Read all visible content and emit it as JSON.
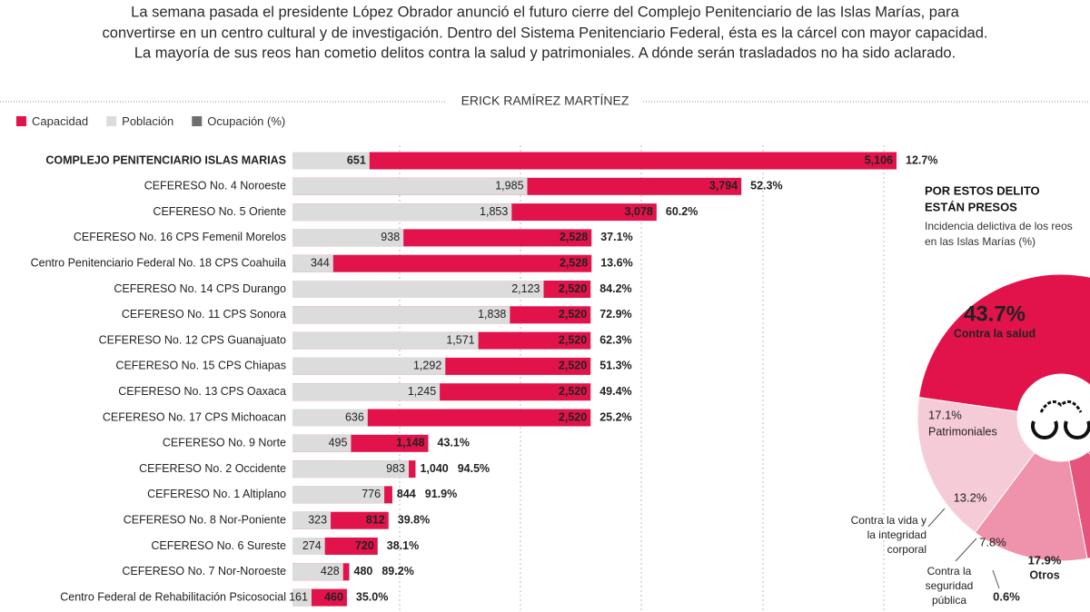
{
  "intro": [
    "La semana pasada el presidente López Obrador anunció el futuro cierre del Complejo Penitenciario de las Islas Marías, para",
    "convertirse en un centro cultural y de investigación. Dentro del Sistema Penitenciario Federal, ésta es la cárcel con mayor capacidad.",
    "La mayoría de sus reos han cometio delitos contra la salud y patrimoniales. A dónde serán trasladados no ha sido aclarado."
  ],
  "byline": "ERICK RAMÍREZ MARTÍNEZ",
  "chart_data": [
    {
      "type": "bar",
      "categories": [
        "COMPLEJO PENITENCIARIO ISLAS MARIAS",
        "CEFERESO No. 4 Noroeste",
        "CEFERESO No. 5 Oriente",
        "CEFERESO No. 16 CPS Femenil Morelos",
        "Centro Penitenciario Federal No. 18 CPS Coahuila",
        "CEFERESO No. 14 CPS Durango",
        "CEFERESO No. 11 CPS Sonora",
        "CEFERESO No. 12 CPS Guanajuato",
        "CEFERESO No. 15 CPS Chiapas",
        "CEFERESO No. 13 CPS Oaxaca",
        "CEFERESO No. 17 CPS Michoacan",
        "CEFERESO No. 9 Norte",
        "CEFERESO No. 2 Occidente",
        "CEFERESO No. 1 Altiplano",
        "CEFERESO No. 8 Nor-Poniente",
        "CEFERESO No. 6 Sureste",
        "CEFERESO No. 7 Nor-Noroeste",
        "Centro Federal de Rehabilitación Psicosocial"
      ],
      "series": [
        {
          "name": "Capacidad",
          "color": "#e1134a",
          "values": [
            5106,
            3794,
            3078,
            2528,
            2528,
            2520,
            2520,
            2520,
            2520,
            2520,
            2520,
            1148,
            1040,
            844,
            812,
            720,
            480,
            460
          ],
          "value_labels": [
            "5,106",
            "3,794",
            "3,078",
            "2,528",
            "2,528",
            "2,520",
            "2,520",
            "2,520",
            "2,520",
            "2,520",
            "2,520",
            "1,148",
            "1,040",
            "844",
            "812",
            "720",
            "480",
            "460"
          ]
        },
        {
          "name": "Población",
          "color": "#dcdcdc",
          "values": [
            651,
            1985,
            1853,
            938,
            344,
            2123,
            1838,
            1571,
            1292,
            1245,
            636,
            495,
            983,
            776,
            323,
            274,
            428,
            161
          ],
          "value_labels": [
            "651",
            "1,985",
            "1,853",
            "938",
            "344",
            "2,123",
            "1,838",
            "1,571",
            "1,292",
            "1,245",
            "636",
            "495",
            "983",
            "776",
            "323",
            "274",
            "428",
            "161"
          ]
        },
        {
          "name": "Ocupación (%)",
          "color": "#6d6e70",
          "values": [
            12.7,
            52.3,
            60.2,
            37.1,
            13.6,
            84.2,
            72.9,
            62.3,
            51.3,
            49.4,
            25.2,
            43.1,
            94.5,
            91.9,
            39.8,
            38.1,
            89.2,
            35.0
          ],
          "value_labels": [
            "12.7%",
            "52.3%",
            "60.2%",
            "37.1%",
            "13.6%",
            "84.2%",
            "72.9%",
            "62.3%",
            "51.3%",
            "49.4%",
            "25.2%",
            "43.1%",
            "94.5%",
            "91.9%",
            "39.8%",
            "38.1%",
            "89.2%",
            "35.0%"
          ]
        }
      ]
    },
    {
      "type": "donut",
      "title": [
        "POR ESTOS DELITO",
        "ESTÁN PRESOS"
      ],
      "subtitle": [
        "Incidencia delictiva de los reos",
        "en las Islas Marías (%)"
      ],
      "categories": [
        "Contra la salud",
        "Patrimoniales",
        [
          "Contra la vida y",
          "la integridad",
          "corporal"
        ],
        [
          "Contra la",
          "seguridad",
          "pública"
        ],
        null,
        "Otros"
      ],
      "values": [
        43.7,
        17.1,
        13.2,
        7.8,
        0.6,
        17.9
      ],
      "value_labels": [
        "43.7%",
        "17.1%",
        "13.2%",
        "7.8%",
        "0.6%",
        "17.9%"
      ],
      "colors": [
        "#e1134a",
        "#f6cbd8",
        "#ef92ab",
        "#e6547c",
        "#b9103c",
        "#e1134a"
      ]
    }
  ]
}
